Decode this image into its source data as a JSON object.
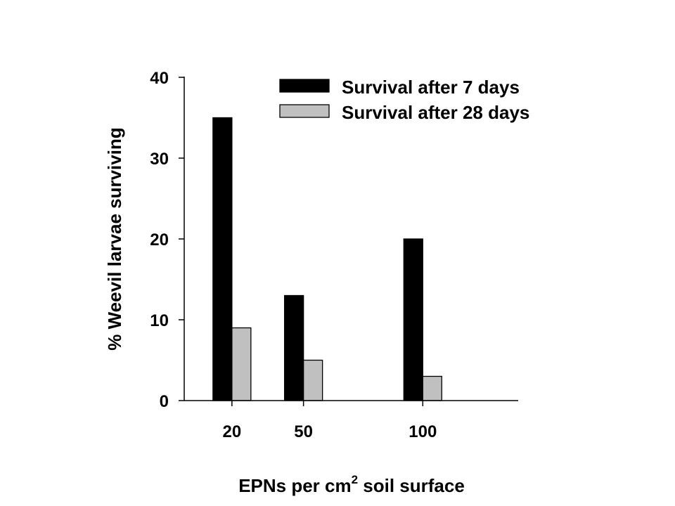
{
  "chart_data": {
    "type": "bar",
    "title": "",
    "xlabel": "EPNs per cm",
    "xlabel_superscript": "2",
    "xlabel_suffix": " soil surface",
    "ylabel": "%  Weevil larvae surviving",
    "ylim": [
      0,
      40
    ],
    "yticks": [
      0,
      10,
      20,
      30,
      40
    ],
    "xlim": [
      0,
      140
    ],
    "categories": [
      "20",
      "50",
      "100"
    ],
    "x": [
      20,
      50,
      100
    ],
    "series": [
      {
        "name": "Survival after 7 days",
        "color": "#000000",
        "values": [
          35,
          13,
          20
        ]
      },
      {
        "name": "Survival after 28 days",
        "color": "#c0c0c0",
        "values": [
          9,
          5,
          3
        ]
      }
    ],
    "legend_position": "top-right",
    "grid": false
  }
}
